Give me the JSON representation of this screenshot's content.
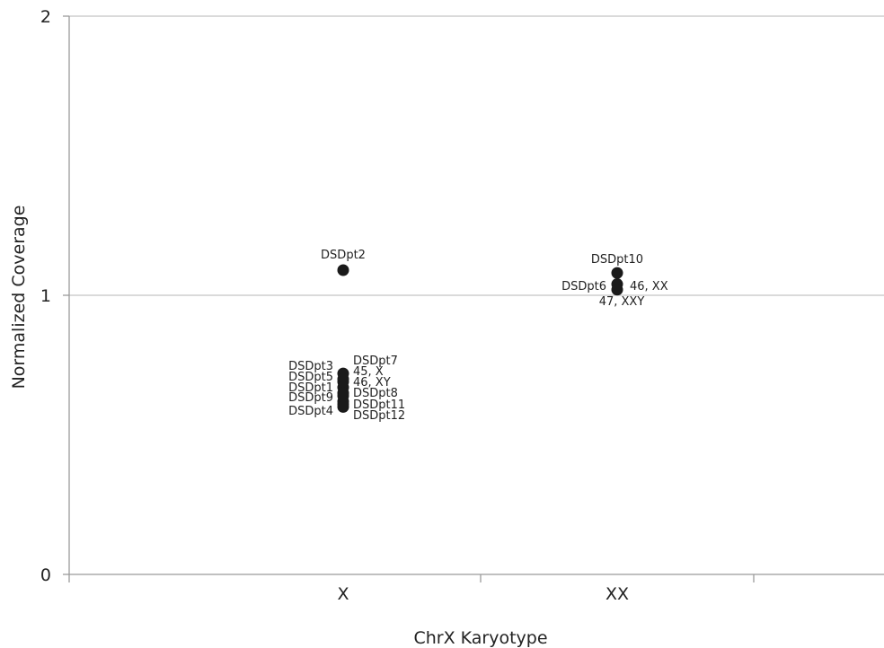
{
  "chart_data": {
    "type": "scatter",
    "title": "",
    "xlabel": "ChrX Karyotype",
    "ylabel": "Normalized Coverage",
    "categories": [
      "X",
      "XX"
    ],
    "ylim": [
      0,
      2
    ],
    "yticks": [
      "0",
      "1",
      "2"
    ],
    "grid": true,
    "legend": "none",
    "marker_color": "#1a1a1a",
    "points": [
      {
        "category": "X",
        "y": 1.09,
        "label": "DSDpt2"
      },
      {
        "category": "X",
        "y": 0.72,
        "label": "DSDpt3"
      },
      {
        "category": "X",
        "y": 0.7,
        "label": "DSDpt7"
      },
      {
        "category": "X",
        "y": 0.69,
        "label": "DSDpt5"
      },
      {
        "category": "X",
        "y": 0.67,
        "label": "DSDpt1"
      },
      {
        "category": "X",
        "y": 0.65,
        "label": "DSDpt8"
      },
      {
        "category": "X",
        "y": 0.64,
        "label": "DSDpt9"
      },
      {
        "category": "X",
        "y": 0.62,
        "label": "DSDpt11"
      },
      {
        "category": "X",
        "y": 0.61,
        "label": "DSDpt12"
      },
      {
        "category": "X",
        "y": 0.6,
        "label": "DSDpt4"
      },
      {
        "category": "XX",
        "y": 1.08,
        "label": "DSDpt10"
      },
      {
        "category": "XX",
        "y": 1.04,
        "label": "DSDpt6"
      },
      {
        "category": "XX",
        "y": 1.02,
        "label": ""
      }
    ],
    "annotations": [
      {
        "category": "X",
        "text": "45, X"
      },
      {
        "category": "X",
        "text": "46, XY"
      },
      {
        "category": "XX",
        "text": "46, XX"
      },
      {
        "category": "XX",
        "text": "47, XXY"
      }
    ]
  }
}
